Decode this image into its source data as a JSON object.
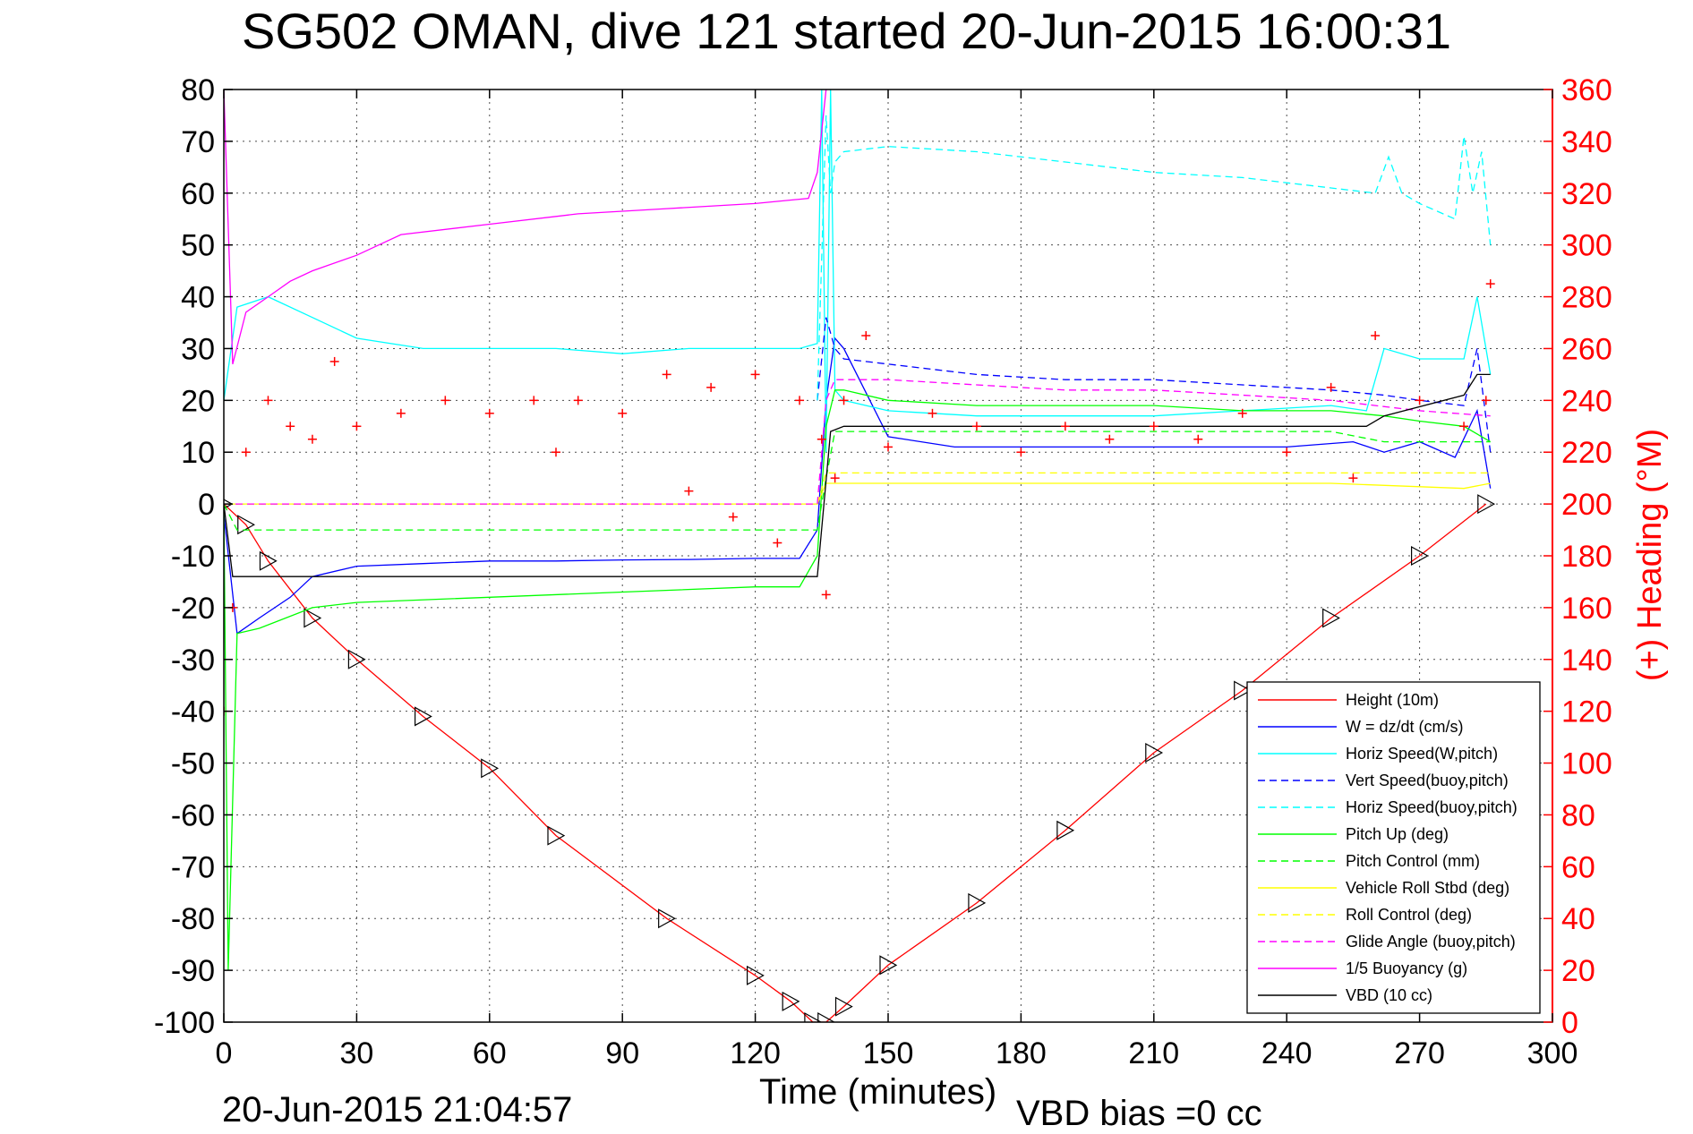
{
  "title": "SG502 OMAN, dive 121 started 20-Jun-2015 16:00:31",
  "footer": {
    "date": "20-Jun-2015 21:04:57",
    "vbd_bias": "VBD bias =0 cc"
  },
  "colors": {
    "height": "#ff0000",
    "w": "#0000ff",
    "horiz_w": "#00ffff",
    "pitch": "#00ff00",
    "roll": "#ffff00",
    "glide": "#ff00ff",
    "buoyancy": "#ff00ff",
    "vbd": "#000000",
    "heading": "#ff0000"
  },
  "chart_data": {
    "type": "line",
    "title": "SG502 OMAN, dive 121 started 20-Jun-2015 16:00:31",
    "xlabel": "Time (minutes)",
    "ylabel": "",
    "y2label": "(+) Heading (°M)",
    "xlim": [
      0,
      300
    ],
    "ylim": [
      -100,
      80
    ],
    "y2lim": [
      0,
      360
    ],
    "xticks": [
      0,
      30,
      60,
      90,
      120,
      150,
      180,
      210,
      240,
      270,
      300
    ],
    "yticks": [
      80,
      70,
      60,
      50,
      40,
      30,
      20,
      10,
      0,
      -10,
      -20,
      -30,
      -40,
      -50,
      -60,
      -70,
      -80,
      -90,
      -100
    ],
    "y2ticks": [
      360,
      340,
      320,
      300,
      280,
      260,
      240,
      220,
      200,
      180,
      160,
      140,
      120,
      100,
      80,
      60,
      40,
      20,
      0
    ],
    "grid": true,
    "legend_position": "bottom-right",
    "legend": [
      {
        "label": "Height (10m)",
        "color": "#ff0000",
        "style": "solid"
      },
      {
        "label": "W = dz/dt (cm/s)",
        "color": "#0000ff",
        "style": "solid"
      },
      {
        "label": "Horiz Speed(W,pitch)",
        "color": "#00ffff",
        "style": "solid"
      },
      {
        "label": "Vert Speed(buoy,pitch)",
        "color": "#0000ff",
        "style": "dashed"
      },
      {
        "label": "Horiz Speed(buoy,pitch)",
        "color": "#00ffff",
        "style": "dashed"
      },
      {
        "label": "Pitch Up (deg)",
        "color": "#00ff00",
        "style": "solid"
      },
      {
        "label": "Pitch Control (mm)",
        "color": "#00ff00",
        "style": "dashed"
      },
      {
        "label": "Vehicle Roll Stbd (deg)",
        "color": "#ffff00",
        "style": "solid"
      },
      {
        "label": "Roll Control (deg)",
        "color": "#ffff00",
        "style": "dashed"
      },
      {
        "label": "Glide Angle (buoy,pitch)",
        "color": "#ff00ff",
        "style": "dashed"
      },
      {
        "label": "1/5 Buoyancy (g)",
        "color": "#ff00ff",
        "style": "solid"
      },
      {
        "label": "VBD (10 cc)",
        "color": "#000000",
        "style": "solid"
      }
    ],
    "series": [
      {
        "name": "Height (10m)",
        "style": "solid",
        "color": "#ff0000",
        "x": [
          0,
          5,
          10,
          20,
          30,
          45,
          60,
          75,
          100,
          120,
          128,
          133,
          136,
          140,
          150,
          170,
          190,
          210,
          230,
          250,
          270,
          285
        ],
        "y": [
          0,
          -4,
          -11,
          -22,
          -30,
          -41,
          -51,
          -64,
          -80,
          -91,
          -96,
          -100,
          -100,
          -97,
          -89,
          -77,
          -63,
          -48,
          -36,
          -22,
          -10,
          0
        ]
      },
      {
        "name": "W = dz/dt (cm/s)",
        "style": "solid",
        "color": "#0000ff",
        "x": [
          0,
          3,
          8,
          15,
          20,
          30,
          45,
          60,
          75,
          90,
          105,
          120,
          130,
          134,
          136,
          138,
          140,
          150,
          165,
          180,
          200,
          220,
          240,
          255,
          262,
          270,
          278,
          283,
          286
        ],
        "y": [
          -2,
          -25,
          -22,
          -18,
          -14,
          -12,
          -11.5,
          -11,
          -11,
          -10.8,
          -10.7,
          -10.5,
          -10.5,
          -5,
          20,
          32,
          30,
          13,
          11,
          11,
          11,
          11,
          11,
          12,
          10,
          12,
          9,
          18,
          3
        ]
      },
      {
        "name": "Horiz Speed(W,pitch)",
        "style": "solid",
        "color": "#00ffff",
        "x": [
          0,
          3,
          10,
          20,
          30,
          45,
          60,
          75,
          90,
          105,
          120,
          130,
          134,
          135,
          136,
          137,
          138,
          140,
          150,
          170,
          190,
          210,
          230,
          250,
          258,
          262,
          270,
          280,
          283,
          286
        ],
        "y": [
          20,
          38,
          40,
          36,
          32,
          30,
          30,
          30,
          29,
          30,
          30,
          30,
          31,
          80,
          10,
          80,
          22,
          20,
          18,
          17,
          17,
          17,
          18,
          19,
          18,
          30,
          28,
          28,
          40,
          25
        ]
      },
      {
        "name": "Vert Speed(buoy,pitch)",
        "style": "dashed",
        "color": "#0000ff",
        "x": [
          134,
          136,
          138,
          140,
          150,
          170,
          190,
          210,
          230,
          250,
          262,
          270,
          280,
          283,
          286
        ],
        "y": [
          20,
          36,
          30,
          28,
          27,
          25,
          24,
          24,
          23,
          22,
          21,
          20,
          19,
          30,
          10
        ]
      },
      {
        "name": "Horiz Speed(buoy,pitch)",
        "style": "dashed",
        "color": "#00ffff",
        "x": [
          134,
          136,
          137,
          138,
          140,
          150,
          170,
          190,
          210,
          230,
          250,
          260,
          263,
          266,
          270,
          278,
          280,
          282,
          284,
          286
        ],
        "y": [
          20,
          75,
          60,
          66,
          68,
          69,
          68,
          66,
          64,
          63,
          61,
          60,
          67,
          60,
          58,
          55,
          71,
          60,
          68,
          50
        ]
      },
      {
        "name": "Pitch Up (deg)",
        "style": "solid",
        "color": "#00ff00",
        "x": [
          0,
          1,
          3,
          8,
          20,
          30,
          60,
          90,
          120,
          130,
          134,
          136,
          138,
          140,
          150,
          170,
          190,
          210,
          230,
          250,
          262,
          270,
          280,
          286
        ],
        "y": [
          0,
          -90,
          -25,
          -24,
          -20,
          -19,
          -18,
          -17,
          -16,
          -16,
          -10,
          15,
          22,
          22,
          20,
          19,
          19,
          19,
          18,
          18,
          17,
          16,
          15,
          12
        ]
      },
      {
        "name": "Pitch Control (mm)",
        "style": "dashed",
        "color": "#00ff00",
        "x": [
          0,
          3,
          60,
          120,
          134,
          136,
          138,
          140,
          200,
          250,
          262,
          286
        ],
        "y": [
          0,
          -5,
          -5,
          -5,
          -5,
          5,
          14,
          14,
          14,
          14,
          12,
          12
        ]
      },
      {
        "name": "Vehicle Roll Stbd (deg)",
        "style": "solid",
        "color": "#ffff00",
        "x": [
          0,
          2,
          30,
          60,
          90,
          120,
          134,
          136,
          140,
          200,
          250,
          280,
          286
        ],
        "y": [
          0,
          0,
          0,
          0,
          0,
          0,
          0,
          4,
          4,
          4,
          4,
          3,
          4
        ]
      },
      {
        "name": "Roll Control (deg)",
        "style": "dashed",
        "color": "#ffff00",
        "x": [
          0,
          60,
          120,
          134,
          136,
          200,
          286
        ],
        "y": [
          0,
          0,
          0,
          0,
          6,
          6,
          6
        ]
      },
      {
        "name": "Glide Angle (buoy,pitch)",
        "style": "dashed",
        "color": "#ff00ff",
        "x": [
          0,
          134,
          136,
          138,
          150,
          170,
          190,
          210,
          230,
          250,
          270,
          286
        ],
        "y": [
          0,
          0,
          20,
          24,
          24,
          23,
          22,
          22,
          21,
          20,
          18,
          17
        ]
      },
      {
        "name": "1/5 Buoyancy (g)",
        "style": "solid",
        "color": "#ff00ff",
        "x": [
          0,
          2,
          5,
          10,
          15,
          20,
          30,
          35,
          40,
          60,
          80,
          100,
          120,
          132,
          134,
          136
        ],
        "y": [
          80,
          27,
          37,
          40,
          43,
          45,
          48,
          50,
          52,
          54,
          56,
          57,
          58,
          59,
          64,
          80
        ]
      },
      {
        "name": "VBD (10 cc)",
        "style": "solid",
        "color": "#000000",
        "x": [
          0,
          2,
          20,
          60,
          120,
          134,
          137,
          140,
          200,
          258,
          262,
          280,
          283,
          286
        ],
        "y": [
          0,
          -14,
          -14,
          -14,
          -14,
          -14,
          14,
          15,
          15,
          15,
          17,
          21,
          25,
          25
        ]
      },
      {
        "name": "(+) Heading (°M)",
        "style": "markers",
        "color": "#ff0000",
        "axis": "right",
        "x": [
          0,
          2,
          5,
          10,
          15,
          20,
          25,
          30,
          40,
          50,
          60,
          70,
          75,
          80,
          90,
          100,
          105,
          110,
          115,
          120,
          125,
          130,
          135,
          136,
          138,
          140,
          145,
          150,
          160,
          170,
          180,
          190,
          200,
          210,
          220,
          230,
          240,
          250,
          255,
          260,
          270,
          280,
          285,
          286
        ],
        "y": [
          120,
          160,
          220,
          240,
          230,
          225,
          255,
          230,
          235,
          240,
          235,
          240,
          220,
          240,
          235,
          250,
          205,
          245,
          195,
          250,
          185,
          240,
          225,
          165,
          210,
          240,
          265,
          222,
          235,
          230,
          220,
          230,
          225,
          230,
          225,
          235,
          220,
          245,
          210,
          265,
          240,
          230,
          240,
          285
        ]
      }
    ]
  }
}
